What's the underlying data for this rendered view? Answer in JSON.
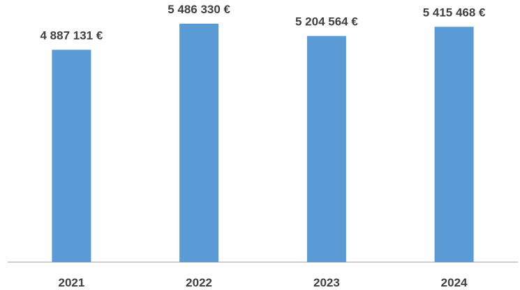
{
  "chart_data": {
    "type": "bar",
    "categories": [
      "2021",
      "2022",
      "2023",
      "2024"
    ],
    "values": [
      4887131,
      5486330,
      5204564,
      5415468
    ],
    "data_labels": [
      "4 887 131 €",
      "5 486 330 €",
      "5 204 564 €",
      "5 415 468 €"
    ],
    "title": "",
    "xlabel": "",
    "ylabel": "",
    "ylim": [
      0,
      6000000
    ],
    "grid": false,
    "legend": "none",
    "colors": {
      "bar": "#5B9BD5",
      "axis": "#BFBFBF",
      "text": "#404040"
    }
  }
}
